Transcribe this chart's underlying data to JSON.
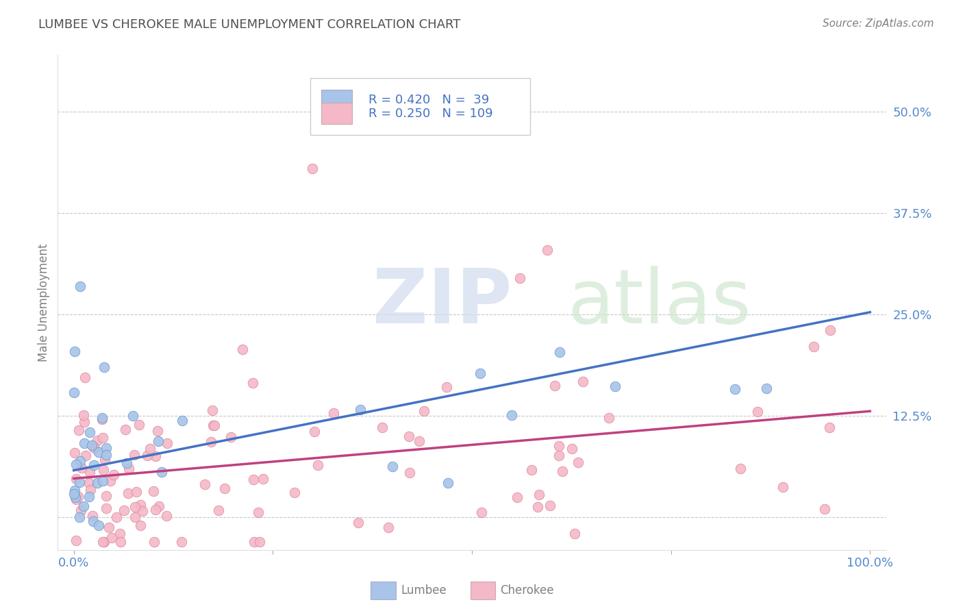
{
  "title": "LUMBEE VS CHEROKEE MALE UNEMPLOYMENT CORRELATION CHART",
  "source": "Source: ZipAtlas.com",
  "ylabel": "Male Unemployment",
  "xlim": [
    -0.02,
    1.02
  ],
  "ylim": [
    -0.04,
    0.57
  ],
  "ytick_vals": [
    0.0,
    0.125,
    0.25,
    0.375,
    0.5
  ],
  "ytick_labels": [
    "",
    "12.5%",
    "25.0%",
    "37.5%",
    "50.0%"
  ],
  "xtick_vals": [
    0.0,
    0.25,
    0.5,
    0.75,
    1.0
  ],
  "xtick_labels": [
    "0.0%",
    "",
    "",
    "",
    "100.0%"
  ],
  "lumbee_scatter_color": "#a8c4e8",
  "lumbee_scatter_edge": "#6699cc",
  "cherokee_scatter_color": "#f4b8c8",
  "cherokee_scatter_edge": "#dd8899",
  "lumbee_line_color": "#4472C4",
  "cherokee_line_color": "#C04080",
  "lumbee_R": 0.42,
  "lumbee_N": 39,
  "cherokee_R": 0.25,
  "cherokee_N": 109,
  "background_color": "#ffffff",
  "grid_color": "#c8c8c8",
  "title_color": "#505050",
  "axis_label_color": "#808080",
  "tick_color": "#5588cc",
  "legend_text_color": "#4472C4",
  "legend_rn_color": "#404040",
  "watermark_zip_color": "#d0dcf0",
  "watermark_atlas_color": "#d0e8d0",
  "lumbee_line_intercept": 0.058,
  "lumbee_line_slope": 0.195,
  "cherokee_line_intercept": 0.048,
  "cherokee_line_slope": 0.083
}
